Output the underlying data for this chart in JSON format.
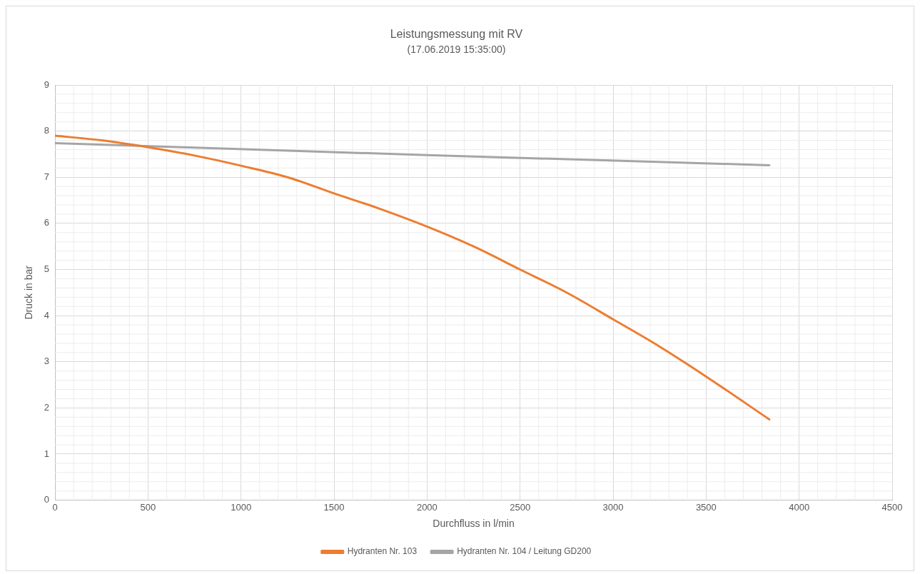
{
  "chart_data": {
    "type": "line",
    "title": "Leistungsmessung mit RV",
    "subtitle": "(17.06.2019 15:35:00)",
    "xlabel": "Durchfluss in l/min",
    "ylabel": "Druck in bar",
    "xlim": [
      0,
      4500
    ],
    "xticks": [
      0,
      500,
      1000,
      1500,
      2000,
      2500,
      3000,
      3500,
      4000,
      4500
    ],
    "ylim": [
      0,
      9
    ],
    "yticks": [
      0,
      1,
      2,
      3,
      4,
      5,
      6,
      7,
      8,
      9
    ],
    "grid": true,
    "legend": "bottom",
    "marker": "none",
    "series": [
      {
        "name": "Hydranten Nr. 103",
        "color": "#ed7d31",
        "x": [
          0,
          250,
          500,
          750,
          1000,
          1250,
          1500,
          1750,
          2000,
          2250,
          2500,
          2750,
          3000,
          3250,
          3500,
          3840
        ],
        "values": [
          7.9,
          7.8,
          7.65,
          7.47,
          7.25,
          7.0,
          6.65,
          6.31,
          5.93,
          5.5,
          5.0,
          4.5,
          3.92,
          3.33,
          2.68,
          1.75
        ]
      },
      {
        "name": "Hydranten Nr. 104 / Leitung GD200",
        "color": "#a5a5a5",
        "x": [
          0,
          2000,
          3840
        ],
        "values": [
          7.74,
          7.48,
          7.26
        ]
      }
    ]
  }
}
